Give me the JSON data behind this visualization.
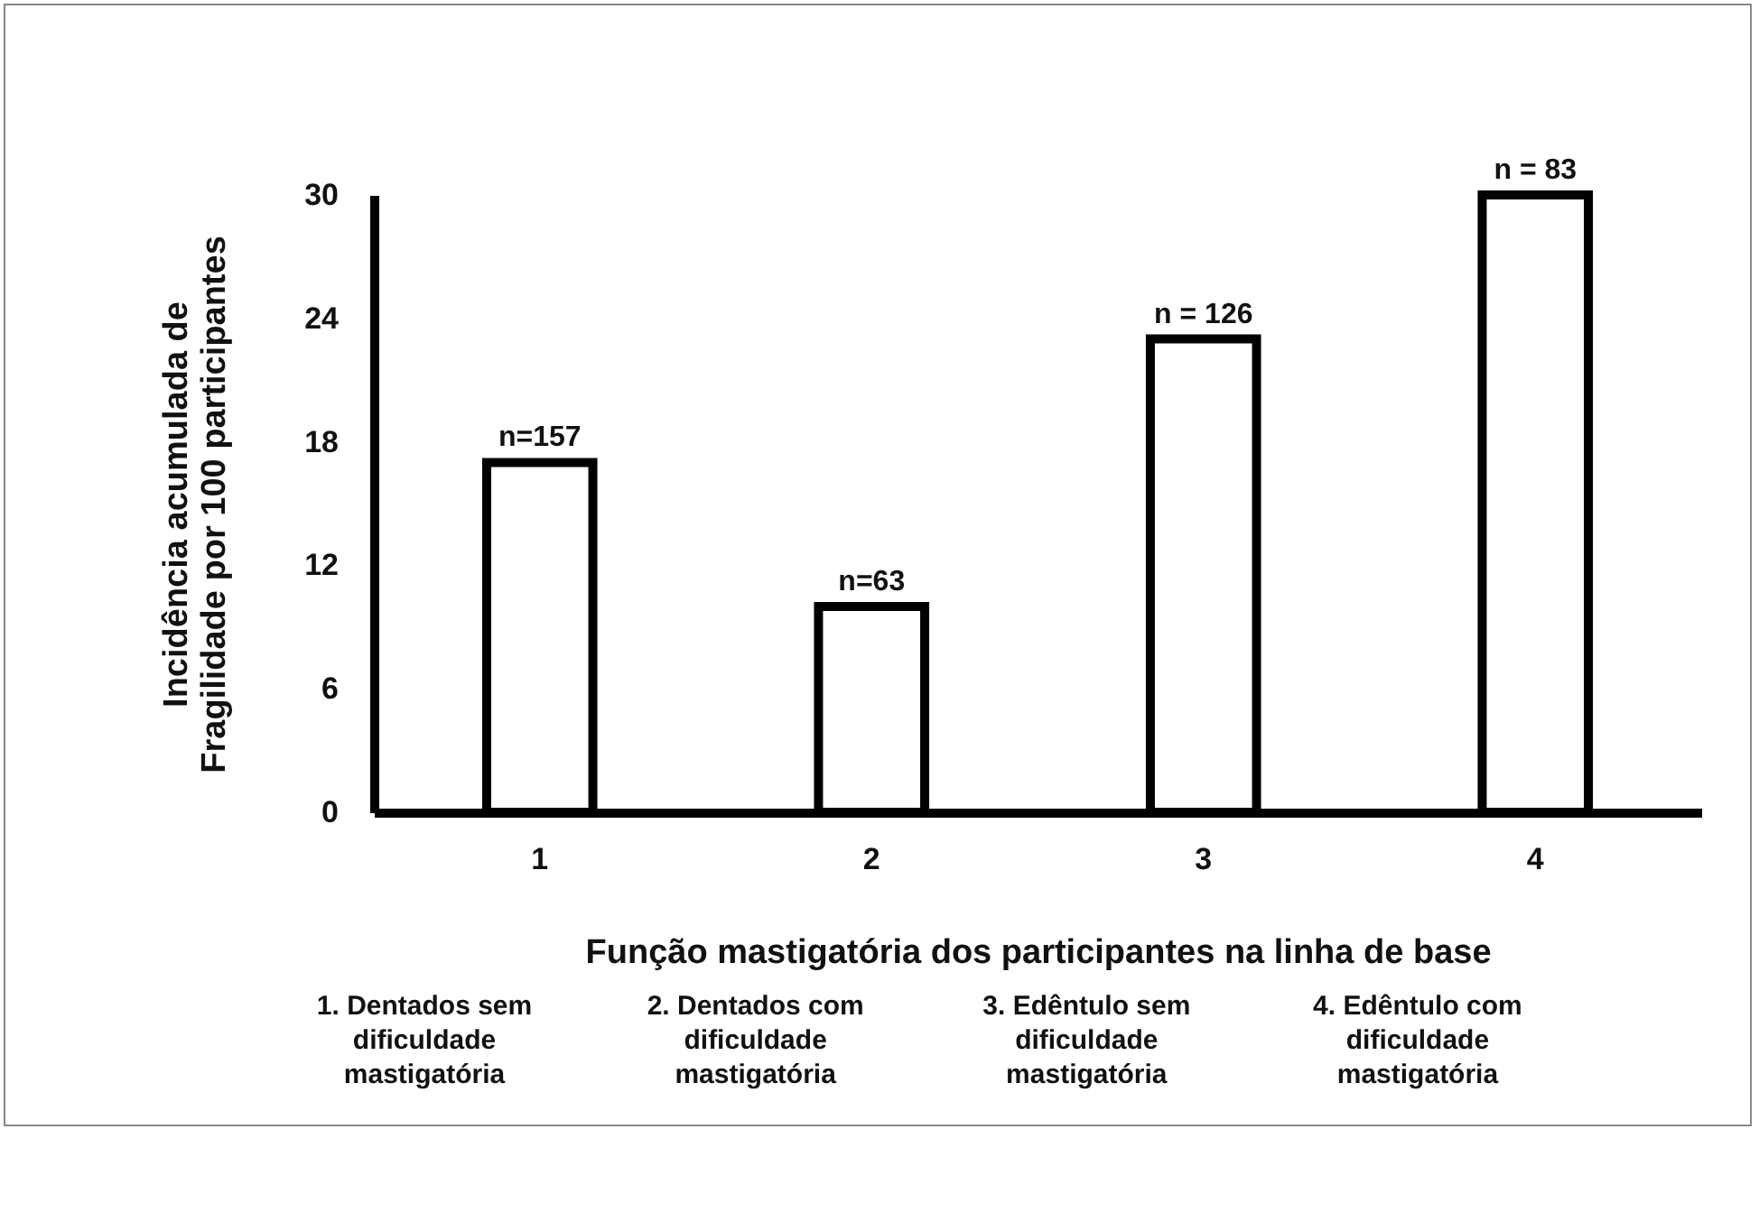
{
  "chart_data": {
    "type": "bar",
    "xlabel": "Função mastigatória dos participantes na linha de base",
    "ylabel": "Incidência acumulada de Fragilidade por 100 participantes",
    "categories": [
      "1",
      "2",
      "3",
      "4"
    ],
    "values": [
      17,
      10,
      23,
      30
    ],
    "color": "#ffffff",
    "ylim": [
      0,
      30
    ],
    "yticks": [
      0,
      6,
      12,
      18,
      24,
      30
    ],
    "grid": false,
    "annotations": [
      {
        "text": "n=157",
        "x": "1",
        "y": 17
      },
      {
        "text": "n=63",
        "x": "2",
        "y": 10
      },
      {
        "text": "n = 126",
        "x": "3",
        "y": 23
      },
      {
        "text": "n = 83",
        "x": "4",
        "y": 30
      },
      "1. Dentados sem dificuldade mastigatória",
      "2. Dentados com dificuldade mastigatória",
      "3. Edêntulo sem dificuldade mastigatória",
      "4. Edêntulo com dificuldade mastigatória"
    ]
  }
}
